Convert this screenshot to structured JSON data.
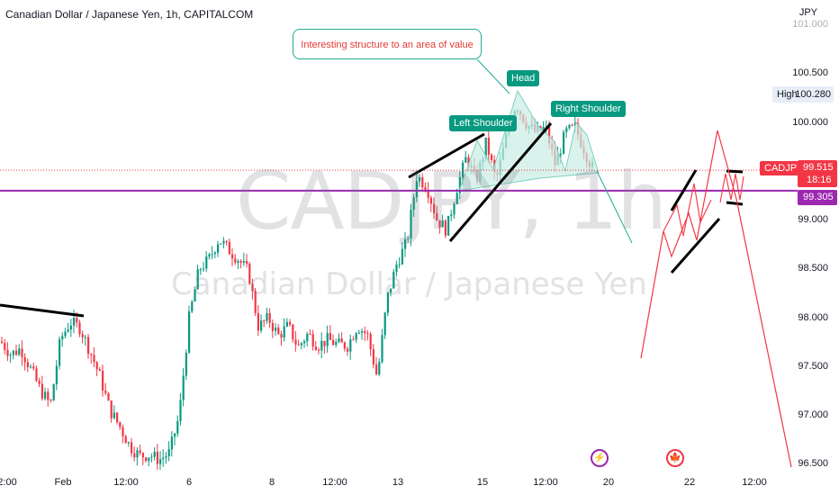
{
  "header": {
    "title": "Canadian Dollar / Japanese Yen, 1h, CAPITALCOM",
    "currency": "JPY"
  },
  "watermark": {
    "symbol": "CADJPY, 1h",
    "name": "Canadian Dollar / Japanese Yen"
  },
  "price_axis": {
    "ticks": [
      "101.000",
      "100.500",
      "100.000",
      "99.000",
      "98.500",
      "98.000",
      "97.500",
      "97.000",
      "96.500"
    ],
    "high_label": "High",
    "high_value": "100.280",
    "symbol_badge": "CADJPY",
    "last_price": "99.515",
    "countdown": "18:16",
    "level_price": "99.305"
  },
  "time_axis": {
    "ticks": [
      "2:00",
      "Feb",
      "12:00",
      "6",
      "8",
      "12:00",
      "13",
      "15",
      "12:00",
      "20",
      "22",
      "12:00"
    ]
  },
  "annotations": {
    "callout": "Interesting structure to an area of value",
    "head": "Head",
    "left_shoulder": "Left Shoulder",
    "right_shoulder": "Right Shoulder"
  },
  "events": {
    "bolt": "⚡",
    "flag": "🍁"
  },
  "colors": {
    "up": "#089981",
    "down": "#f23645",
    "level": "#9c27b0",
    "projection": "#f23645",
    "pattern_fill": "#c9ece4",
    "trend": "#000000"
  },
  "chart_data": {
    "type": "candlestick",
    "symbol": "CADJPY",
    "interval": "1h",
    "ylim": [
      96.45,
      101.05
    ],
    "path_x": [
      0,
      11,
      22,
      33,
      44,
      55,
      66,
      77,
      88,
      99,
      110,
      121,
      132,
      143,
      154,
      165,
      176,
      187,
      198,
      209,
      220,
      231,
      242,
      253,
      264,
      275,
      286,
      297,
      308,
      319,
      330,
      341,
      352,
      363,
      374,
      385,
      396,
      407,
      418,
      429,
      440,
      451,
      462,
      473,
      484,
      495,
      506,
      517,
      528,
      539,
      550,
      561,
      572,
      583,
      594,
      605,
      616,
      627,
      638,
      649,
      660
    ],
    "path_y": [
      97.76,
      97.63,
      97.69,
      97.48,
      97.26,
      97.11,
      97.78,
      97.96,
      97.9,
      97.66,
      97.4,
      97.06,
      96.89,
      96.69,
      96.59,
      96.6,
      96.55,
      96.62,
      97.0,
      98.0,
      98.5,
      98.6,
      98.81,
      98.7,
      98.6,
      98.47,
      97.91,
      98.0,
      97.82,
      97.92,
      97.7,
      97.84,
      97.72,
      97.78,
      97.73,
      97.72,
      97.92,
      97.83,
      97.39,
      98.2,
      98.57,
      98.78,
      99.46,
      99.35,
      99.02,
      98.9,
      99.32,
      99.65,
      99.4,
      99.8,
      99.4,
      99.85,
      100.2,
      100.0,
      99.9,
      99.95,
      99.56,
      99.9,
      99.95,
      99.7,
      99.48
    ],
    "drawings": {
      "horizontal_level": 99.305,
      "last_price": 99.515,
      "session_high": 100.28,
      "projection_path": [
        {
          "x": "feb19-21:00",
          "y": 97.6
        },
        {
          "x": "feb20-07:00",
          "y": 98.85
        },
        {
          "x": "feb20-11:00",
          "y": 98.6
        },
        {
          "x": "feb20-17:00",
          "y": 99.0
        },
        {
          "x": "feb20-22:00",
          "y": 98.75
        },
        {
          "x": "feb21-04:00",
          "y": 99.9
        },
        {
          "x": "feb21-10:00",
          "y": 99.05
        },
        {
          "x": "feb22-16:00",
          "y": 96.45
        }
      ]
    }
  }
}
